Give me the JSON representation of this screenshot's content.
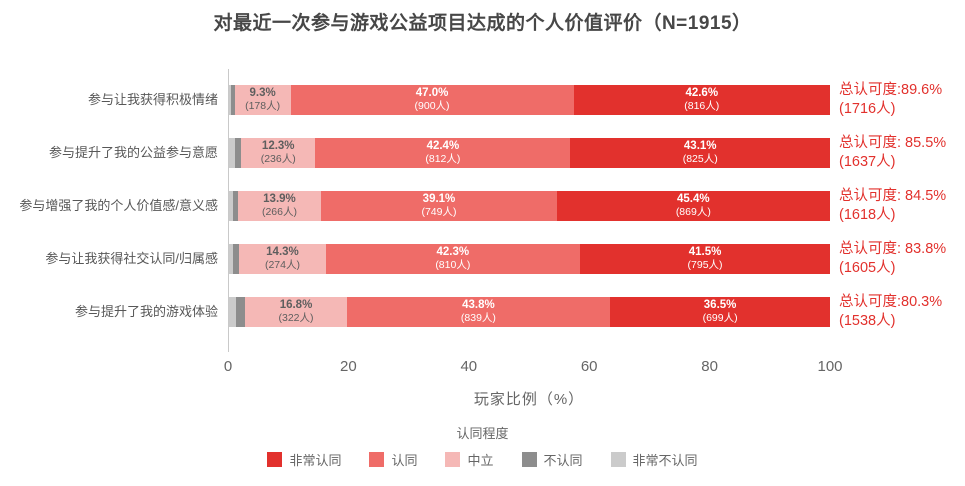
{
  "chart_data": {
    "type": "bar",
    "variant": "horizontal-stacked",
    "title": "对最近一次参与游戏公益项目达成的个人价值评价（N=1915）",
    "sample_size_label": "N=1915",
    "xlabel": "玩家比例（%）",
    "xlim": [
      0,
      100
    ],
    "xticks": [
      0,
      20,
      40,
      60,
      80,
      100
    ],
    "grid": false,
    "legend_title": "认同程度",
    "legend_position": "bottom",
    "stack_order": [
      "非常不认同",
      "不认同",
      "中立",
      "认同",
      "非常认同"
    ],
    "legend_order": [
      "非常认同",
      "认同",
      "中立",
      "不认同",
      "非常不认同"
    ],
    "categories": [
      "参与让我获得积极情绪",
      "参与提升了我的公益参与意愿",
      "参与增强了我的个人价值感/意义感",
      "参与让我获得社交认同/归属感",
      "参与提升了我的游戏体验"
    ],
    "series": [
      {
        "name": "非常不认同",
        "key": "strongly-disagree",
        "color": "#cbcbcb",
        "values_pct": [
          0.5,
          1.1,
          0.8,
          0.9,
          1.4
        ],
        "show_labels": false,
        "estimated": true
      },
      {
        "name": "不认同",
        "key": "disagree",
        "color": "#8d8d8d",
        "values_pct": [
          0.6,
          1.1,
          0.8,
          1.0,
          1.5
        ],
        "show_labels": false,
        "estimated": true
      },
      {
        "name": "中立",
        "key": "neutral",
        "color": "#f5b8b6",
        "values_pct": [
          9.3,
          12.3,
          13.9,
          14.3,
          16.8
        ],
        "counts": [
          178,
          236,
          266,
          274,
          322
        ],
        "show_labels": true,
        "label_color": "#5e5e5e"
      },
      {
        "name": "认同",
        "key": "agree",
        "color": "#ef6c68",
        "values_pct": [
          47.0,
          42.4,
          39.1,
          42.3,
          43.8
        ],
        "counts": [
          900,
          812,
          749,
          810,
          839
        ],
        "show_labels": true,
        "label_color": "#ffffff"
      },
      {
        "name": "非常认同",
        "key": "strongly-agree",
        "color": "#e2312d",
        "values_pct": [
          42.6,
          43.1,
          45.4,
          41.5,
          36.5
        ],
        "counts": [
          816,
          825,
          869,
          795,
          699
        ],
        "show_labels": true,
        "label_color": "#ffffff"
      }
    ],
    "totals": [
      {
        "line1": "总认可度:89.6%",
        "line2": "(1716人)"
      },
      {
        "line1": "总认可度: 85.5%",
        "line2": "(1637人)"
      },
      {
        "line1": "总认可度: 84.5%",
        "line2": "(1618人)"
      },
      {
        "line1": "总认可度: 83.8%",
        "line2": "(1605人)"
      },
      {
        "line1": "总认可度:80.3%",
        "line2": "(1538人)"
      }
    ],
    "totals_color": "#e2312d"
  }
}
